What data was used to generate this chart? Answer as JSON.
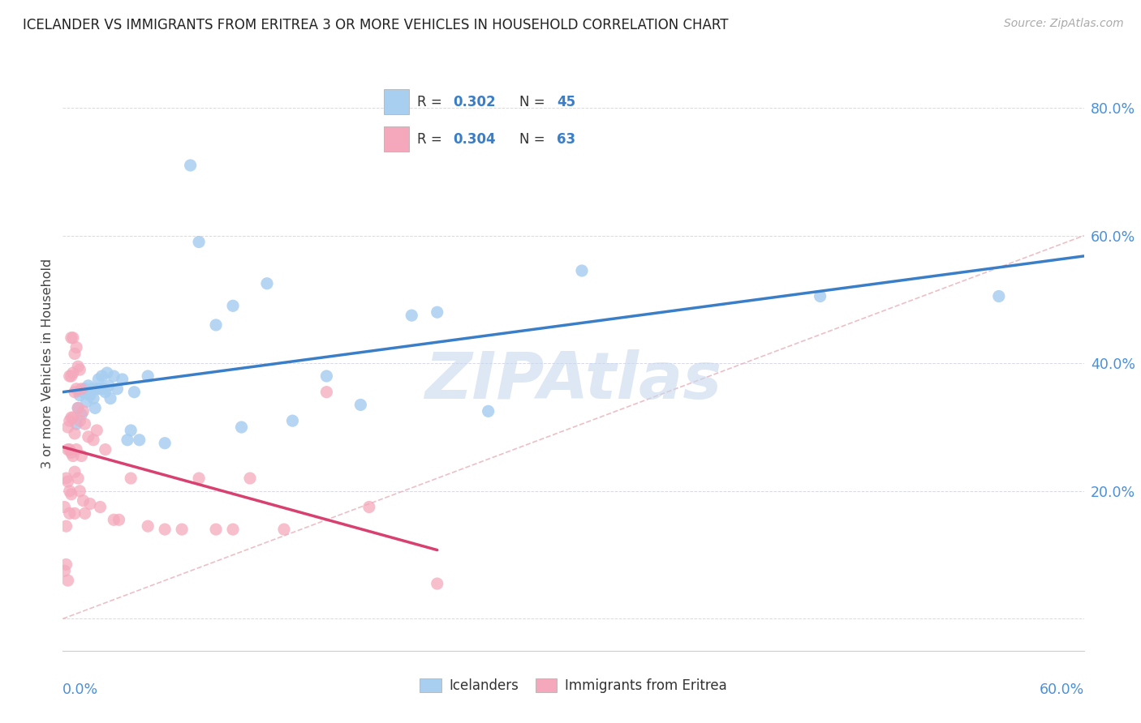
{
  "title": "ICELANDER VS IMMIGRANTS FROM ERITREA 3 OR MORE VEHICLES IN HOUSEHOLD CORRELATION CHART",
  "source": "Source: ZipAtlas.com",
  "ylabel": "3 or more Vehicles in Household",
  "xmin": 0.0,
  "xmax": 0.6,
  "ymin": -0.05,
  "ymax": 0.85,
  "ytick_vals": [
    0.0,
    0.2,
    0.4,
    0.6,
    0.8
  ],
  "ytick_labels": [
    "",
    "20.0%",
    "40.0%",
    "60.0%",
    "80.0%"
  ],
  "blue_R": "0.302",
  "blue_N": "45",
  "pink_R": "0.304",
  "pink_N": "63",
  "blue_color": "#a8cef0",
  "pink_color": "#f5a8bc",
  "blue_trend_color": "#3a7ec8",
  "pink_trend_color": "#d84070",
  "diag_color": "#e0b0b8",
  "legend_label_blue": "Icelanders",
  "legend_label_pink": "Immigrants from Eritrea",
  "background_color": "#ffffff",
  "grid_color": "#d8d8e8",
  "title_color": "#222222",
  "source_color": "#aaaaaa",
  "watermark": "ZIPAtlas",
  "watermark_color": "#c8d8ee",
  "blue_x": [
    0.008,
    0.009,
    0.01,
    0.011,
    0.012,
    0.013,
    0.014,
    0.015,
    0.016,
    0.017,
    0.018,
    0.019,
    0.02,
    0.021,
    0.022,
    0.023,
    0.024,
    0.025,
    0.026,
    0.027,
    0.028,
    0.03,
    0.032,
    0.035,
    0.038,
    0.04,
    0.042,
    0.045,
    0.05,
    0.06,
    0.075,
    0.08,
    0.09,
    0.1,
    0.105,
    0.12,
    0.135,
    0.155,
    0.175,
    0.205,
    0.22,
    0.25,
    0.305,
    0.445,
    0.55
  ],
  "blue_y": [
    0.305,
    0.33,
    0.35,
    0.32,
    0.355,
    0.36,
    0.34,
    0.365,
    0.35,
    0.36,
    0.345,
    0.33,
    0.36,
    0.375,
    0.36,
    0.38,
    0.36,
    0.355,
    0.385,
    0.365,
    0.345,
    0.38,
    0.36,
    0.375,
    0.28,
    0.295,
    0.355,
    0.28,
    0.38,
    0.275,
    0.71,
    0.59,
    0.46,
    0.49,
    0.3,
    0.525,
    0.31,
    0.38,
    0.335,
    0.475,
    0.48,
    0.325,
    0.545,
    0.505,
    0.505
  ],
  "pink_x": [
    0.001,
    0.001,
    0.002,
    0.002,
    0.002,
    0.003,
    0.003,
    0.003,
    0.003,
    0.004,
    0.004,
    0.004,
    0.004,
    0.004,
    0.005,
    0.005,
    0.005,
    0.005,
    0.005,
    0.006,
    0.006,
    0.006,
    0.006,
    0.007,
    0.007,
    0.007,
    0.007,
    0.007,
    0.008,
    0.008,
    0.008,
    0.009,
    0.009,
    0.009,
    0.01,
    0.01,
    0.01,
    0.011,
    0.011,
    0.012,
    0.012,
    0.013,
    0.013,
    0.015,
    0.016,
    0.018,
    0.02,
    0.022,
    0.025,
    0.03,
    0.033,
    0.04,
    0.05,
    0.06,
    0.07,
    0.08,
    0.09,
    0.1,
    0.11,
    0.13,
    0.155,
    0.18,
    0.22
  ],
  "pink_y": [
    0.175,
    0.075,
    0.22,
    0.145,
    0.085,
    0.3,
    0.265,
    0.215,
    0.06,
    0.38,
    0.31,
    0.265,
    0.2,
    0.165,
    0.44,
    0.38,
    0.315,
    0.26,
    0.195,
    0.44,
    0.385,
    0.315,
    0.255,
    0.415,
    0.355,
    0.29,
    0.23,
    0.165,
    0.425,
    0.36,
    0.265,
    0.395,
    0.33,
    0.22,
    0.39,
    0.31,
    0.2,
    0.36,
    0.255,
    0.325,
    0.185,
    0.305,
    0.165,
    0.285,
    0.18,
    0.28,
    0.295,
    0.175,
    0.265,
    0.155,
    0.155,
    0.22,
    0.145,
    0.14,
    0.14,
    0.22,
    0.14,
    0.14,
    0.22,
    0.14,
    0.355,
    0.175,
    0.055
  ]
}
